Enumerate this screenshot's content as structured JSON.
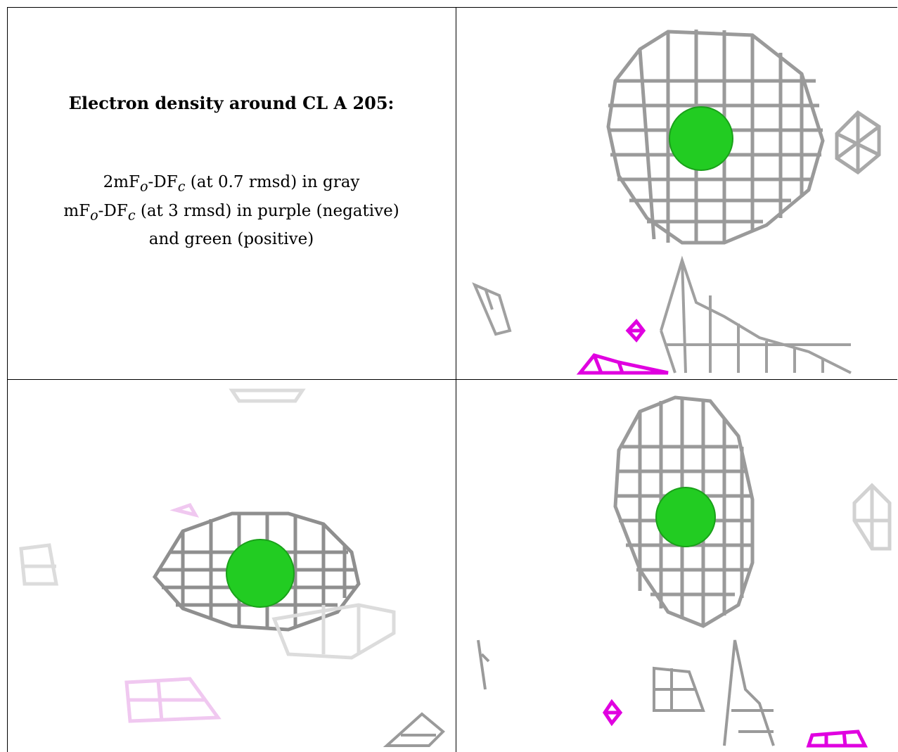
{
  "caption": {
    "title": "Electron density around CL A 205:",
    "line1": {
      "main": "2mF",
      "sub1": "o",
      "mid": "-DF",
      "sub2": "c",
      "rest": " (at 0.7 rmsd) in gray"
    },
    "line2": {
      "main": "mF",
      "sub1": "o",
      "mid": "-DF",
      "sub2": "c",
      "rest": " (at 3 rmsd) in purple (negative)"
    },
    "line3": "and green (positive)"
  },
  "colors": {
    "mesh_gray": "#9a9a9a",
    "mesh_light": "#dcdcdc",
    "negative": "#e000e0",
    "negative_light": "#f0c8f0",
    "positive": "#22cc22",
    "border": "#000000"
  }
}
